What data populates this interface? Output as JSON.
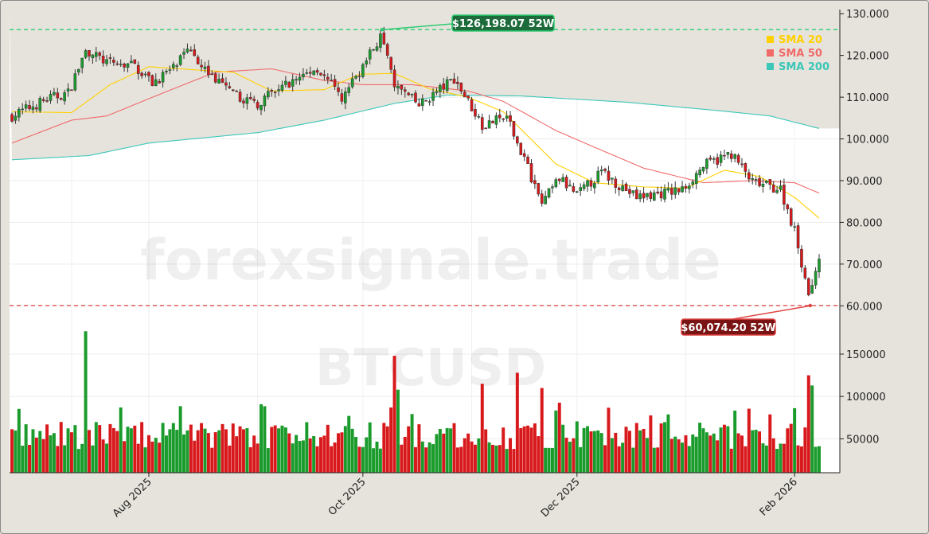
{
  "watermark": {
    "brand": "forexsignale.trade",
    "symbol": "BTCUSD"
  },
  "colors": {
    "up": "#1a9b2c",
    "down": "#d8191c",
    "sma20": "#ffd000",
    "sma50": "#f06a6a",
    "sma200": "#3cc7b8",
    "high_line": "#2ecc71",
    "low_line": "#e04343"
  },
  "chart_data": [
    {
      "type": "candlestick",
      "name": "price",
      "x_range": [
        "2025-06-23",
        "2026-02-08"
      ],
      "ylim": [
        53000,
        131000
      ],
      "y_ticks": [
        60000,
        70000,
        80000,
        90000,
        100000,
        110000,
        120000,
        130000
      ],
      "y_tick_labels": [
        "60.000",
        "70.000",
        "80.000",
        "90.000",
        "100.000",
        "110.000",
        "120.000",
        "130.000"
      ],
      "x_ticks": [
        {
          "date": "2025-08-01",
          "label": "Aug 2025"
        },
        {
          "date": "2025-10-01",
          "label": "Oct 2025"
        },
        {
          "date": "2025-12-01",
          "label": "Dec 2025"
        },
        {
          "date": "2026-02-01",
          "label": "Feb 2026"
        }
      ],
      "grid": true,
      "legend_position": "top-right",
      "legend": [
        "SMA 20",
        "SMA 50",
        "SMA 200"
      ],
      "close_anchors": [
        [
          "2025-06-23",
          105500
        ],
        [
          "2025-07-03",
          109500
        ],
        [
          "2025-07-09",
          111000
        ],
        [
          "2025-07-14",
          121000
        ],
        [
          "2025-07-21",
          118000
        ],
        [
          "2025-07-28",
          117500
        ],
        [
          "2025-08-02",
          113500
        ],
        [
          "2025-08-08",
          117000
        ],
        [
          "2025-08-13",
          121500
        ],
        [
          "2025-08-18",
          115800
        ],
        [
          "2025-08-25",
          110500
        ],
        [
          "2025-09-01",
          108500
        ],
        [
          "2025-09-10",
          113500
        ],
        [
          "2025-09-18",
          117000
        ],
        [
          "2025-09-25",
          109500
        ],
        [
          "2025-10-01",
          117500
        ],
        [
          "2025-10-06",
          124500
        ],
        [
          "2025-10-10",
          113000
        ],
        [
          "2025-10-17",
          108000
        ],
        [
          "2025-10-27",
          114500
        ],
        [
          "2025-11-04",
          103500
        ],
        [
          "2025-11-11",
          105000
        ],
        [
          "2025-11-17",
          93000
        ],
        [
          "2025-11-21",
          84500
        ],
        [
          "2025-11-26",
          90500
        ],
        [
          "2025-12-01",
          86500
        ],
        [
          "2025-12-08",
          92000
        ],
        [
          "2025-12-18",
          86000
        ],
        [
          "2025-12-31",
          87800
        ],
        [
          "2026-01-06",
          93500
        ],
        [
          "2026-01-14",
          96500
        ],
        [
          "2026-01-20",
          89500
        ],
        [
          "2026-01-28",
          88000
        ],
        [
          "2026-02-01",
          78000
        ],
        [
          "2026-02-05",
          63000
        ],
        [
          "2026-02-08",
          70500
        ]
      ],
      "sma20_anchors": [
        [
          "2025-06-23",
          106500
        ],
        [
          "2025-07-10",
          106300
        ],
        [
          "2025-07-21",
          113000
        ],
        [
          "2025-08-01",
          117300
        ],
        [
          "2025-08-15",
          116500
        ],
        [
          "2025-08-25",
          116000
        ],
        [
          "2025-09-05",
          111500
        ],
        [
          "2025-09-20",
          111800
        ],
        [
          "2025-09-30",
          115500
        ],
        [
          "2025-10-10",
          115700
        ],
        [
          "2025-10-20",
          112000
        ],
        [
          "2025-10-31",
          110000
        ],
        [
          "2025-11-10",
          106500
        ],
        [
          "2025-11-25",
          94000
        ],
        [
          "2025-12-06",
          89500
        ],
        [
          "2025-12-20",
          88500
        ],
        [
          "2026-01-01",
          88200
        ],
        [
          "2026-01-12",
          92500
        ],
        [
          "2026-01-22",
          91000
        ],
        [
          "2026-02-01",
          86000
        ],
        [
          "2026-02-08",
          81000
        ]
      ],
      "sma50_anchors": [
        [
          "2025-06-23",
          99000
        ],
        [
          "2025-07-10",
          104500
        ],
        [
          "2025-07-20",
          105500
        ],
        [
          "2025-08-05",
          111000
        ],
        [
          "2025-08-20",
          116000
        ],
        [
          "2025-09-05",
          116800
        ],
        [
          "2025-09-20",
          114000
        ],
        [
          "2025-10-01",
          113000
        ],
        [
          "2025-10-15",
          113000
        ],
        [
          "2025-10-31",
          111500
        ],
        [
          "2025-11-10",
          109000
        ],
        [
          "2025-11-25",
          102000
        ],
        [
          "2025-12-06",
          98000
        ],
        [
          "2025-12-20",
          93000
        ],
        [
          "2026-01-06",
          89500
        ],
        [
          "2026-01-20",
          90000
        ],
        [
          "2026-02-01",
          89500
        ],
        [
          "2026-02-08",
          87000
        ]
      ],
      "sma200_anchors": [
        [
          "2025-06-23",
          95000
        ],
        [
          "2025-07-15",
          96000
        ],
        [
          "2025-08-01",
          99000
        ],
        [
          "2025-09-01",
          101500
        ],
        [
          "2025-09-20",
          104500
        ],
        [
          "2025-10-10",
          108500
        ],
        [
          "2025-10-25",
          110500
        ],
        [
          "2025-11-15",
          110300
        ],
        [
          "2025-12-15",
          108800
        ],
        [
          "2026-01-10",
          106800
        ],
        [
          "2026-01-25",
          105500
        ],
        [
          "2026-02-08",
          102500
        ]
      ],
      "annotations": [
        {
          "label": "$126,198.07 52W",
          "date": "2025-10-06",
          "value": 126198.07,
          "kind": "high"
        },
        {
          "label": "$60,074.20 52W",
          "date": "2026-02-05",
          "value": 60074.2,
          "kind": "low"
        }
      ]
    },
    {
      "type": "bar",
      "name": "volume",
      "ylim": [
        10000,
        165000
      ],
      "y_ticks": [
        50000,
        100000,
        150000
      ],
      "y_tick_labels": [
        "50000",
        "100000",
        "150000"
      ],
      "grid": true,
      "spikes": [
        [
          "2025-07-14",
          177000
        ],
        [
          "2025-10-10",
          148000
        ],
        [
          "2025-10-11",
          108000
        ],
        [
          "2025-11-14",
          128000
        ],
        [
          "2025-11-04",
          115000
        ],
        [
          "2025-11-21",
          110000
        ],
        [
          "2026-02-05",
          125000
        ],
        [
          "2026-02-06",
          113000
        ]
      ]
    }
  ]
}
